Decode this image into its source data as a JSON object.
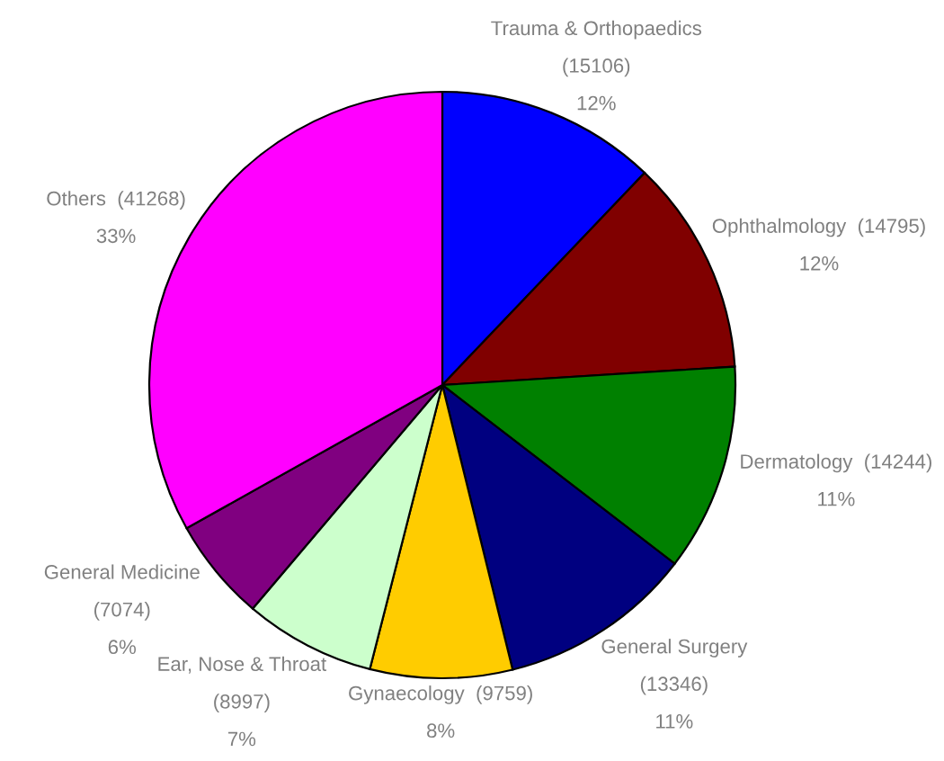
{
  "chart_data": {
    "type": "pie",
    "categories": [
      "Trauma & Orthopaedics",
      "Ophthalmology",
      "Dermatology",
      "General Surgery",
      "Gynaecology",
      "Ear, Nose & Throat",
      "General Medicine",
      "Others"
    ],
    "values": [
      15106,
      14795,
      14244,
      13346,
      9759,
      8997,
      7074,
      41268
    ],
    "colors": [
      "#0000ff",
      "#800000",
      "#008000",
      "#000080",
      "#ffcc00",
      "#ccffcc",
      "#800080",
      "#ff00ff"
    ],
    "value_labels": [
      "(15106)\n12%",
      "(14795)\n12%",
      "(14244)\n11%",
      "(13346)\n11%",
      "(9759)\n8%",
      "(8997)\n7%",
      "(7074)\n6%",
      "(41268)\n33%"
    ]
  }
}
